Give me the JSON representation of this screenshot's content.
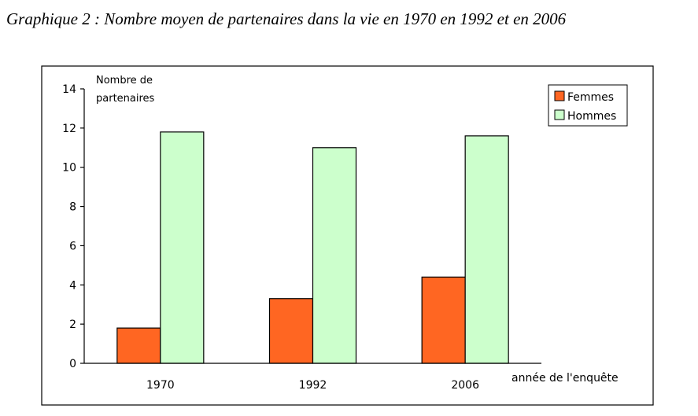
{
  "title": "Graphique 2 : Nombre moyen de partenaires dans la vie en 1970 en 1992 et en 2006",
  "chart_data": {
    "type": "bar",
    "title": "Graphique 2 : Nombre moyen de partenaires dans la vie en 1970 en 1992 et en 2006",
    "ylabel_line1": "Nombre de",
    "ylabel_line2": "partenaires",
    "xlabel": "année de l'enquête",
    "categories": [
      "1970",
      "1992",
      "2006"
    ],
    "yticks": [
      "0",
      "2",
      "4",
      "6",
      "8",
      "10",
      "12",
      "14"
    ],
    "ylim": [
      0,
      14
    ],
    "grid": false,
    "legend_position": "top-right",
    "series": [
      {
        "name": "Femmes",
        "color": "#ff6622",
        "values": [
          1.8,
          3.3,
          4.4
        ]
      },
      {
        "name": "Hommes",
        "color": "#ccffcc",
        "values": [
          11.8,
          11.0,
          11.6
        ]
      }
    ]
  }
}
